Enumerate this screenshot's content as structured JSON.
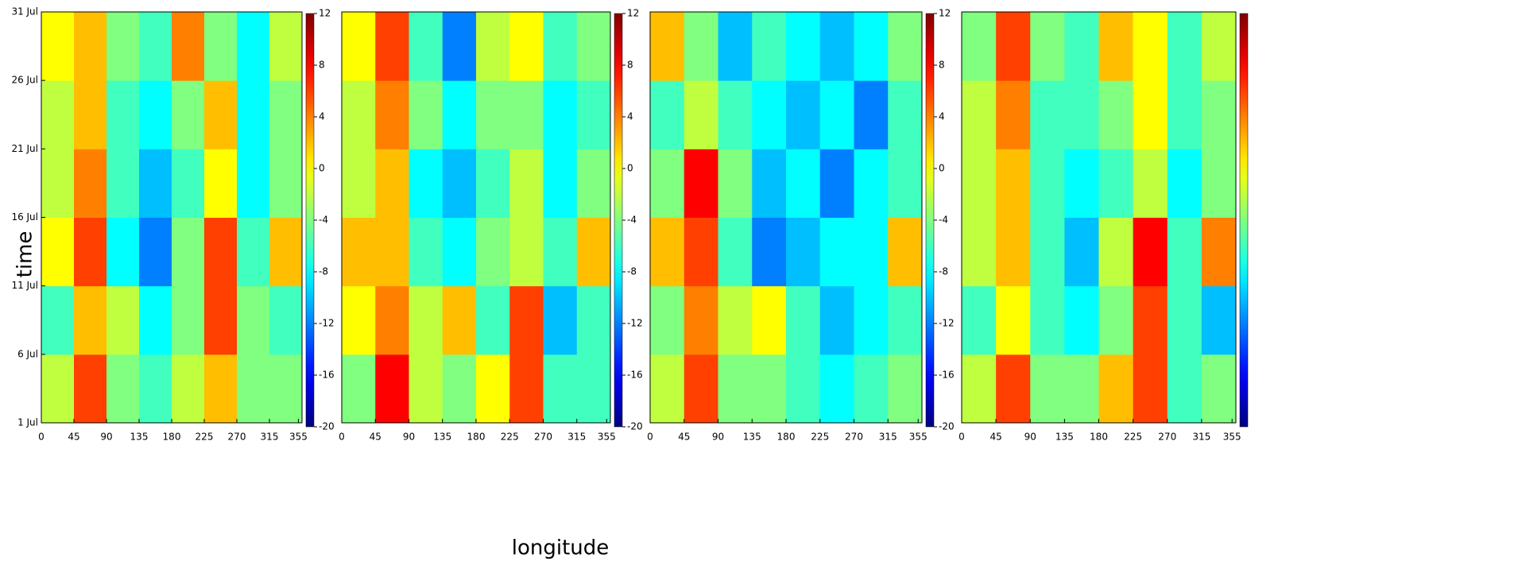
{
  "chart_data": [
    {
      "type": "heatmap",
      "ylabel": "time",
      "clim": [
        -20,
        12
      ],
      "cticks": [
        12,
        8,
        4,
        0,
        -4,
        -8,
        -12,
        -16,
        -20
      ],
      "xlim": [
        0,
        360
      ],
      "xticks": [
        0,
        45,
        90,
        135,
        180,
        225,
        270,
        315,
        355
      ],
      "ylim": [
        1,
        31
      ],
      "yticks": [
        {
          "value": 1,
          "label": "1 Jul"
        },
        {
          "value": 6,
          "label": "6 Jul"
        },
        {
          "value": 11,
          "label": "11 Jul"
        },
        {
          "value": 16,
          "label": "16 Jul"
        },
        {
          "value": 21,
          "label": "21 Jul"
        },
        {
          "value": 26,
          "label": "26 Jul"
        },
        {
          "value": 31,
          "label": "31 Jul"
        }
      ],
      "x": [
        22.5,
        67.5,
        112.5,
        157.5,
        202.5,
        247.5,
        292.5,
        337.5
      ],
      "y": [
        3.5,
        8.5,
        13.5,
        18.5,
        23.5,
        28.5
      ],
      "z": [
        [
          -2,
          6,
          -4,
          -6,
          -2,
          2,
          -4,
          -4
        ],
        [
          -6,
          2,
          -2,
          -8,
          -4,
          6,
          -4,
          -6
        ],
        [
          0,
          6,
          -8,
          -12,
          -4,
          6,
          -6,
          2
        ],
        [
          -2,
          4,
          -6,
          -10,
          -6,
          0,
          -8,
          -4
        ],
        [
          -2,
          2,
          -6,
          -8,
          -4,
          2,
          -8,
          -4
        ],
        [
          0,
          2,
          -4,
          -6,
          4,
          -4,
          -8,
          -2
        ]
      ]
    },
    {
      "type": "heatmap",
      "xlabel": "longitude",
      "clim": [
        -20,
        12
      ],
      "cticks": [
        12,
        8,
        4,
        0,
        -4,
        -8,
        -12,
        -16,
        -20
      ],
      "xlim": [
        0,
        360
      ],
      "xticks": [
        0,
        45,
        90,
        135,
        180,
        225,
        270,
        315,
        355
      ],
      "ylim": [
        1,
        31
      ],
      "x": [
        22.5,
        67.5,
        112.5,
        157.5,
        202.5,
        247.5,
        292.5,
        337.5
      ],
      "y": [
        3.5,
        8.5,
        13.5,
        18.5,
        23.5,
        28.5
      ],
      "z": [
        [
          -4,
          8,
          -2,
          -4,
          0,
          6,
          -6,
          -6
        ],
        [
          0,
          4,
          -2,
          2,
          -6,
          6,
          -10,
          -6
        ],
        [
          2,
          2,
          -6,
          -8,
          -4,
          -2,
          -6,
          2
        ],
        [
          -2,
          2,
          -8,
          -10,
          -6,
          -2,
          -8,
          -4
        ],
        [
          -2,
          4,
          -4,
          -8,
          -4,
          -4,
          -8,
          -6
        ],
        [
          0,
          6,
          -6,
          -12,
          -2,
          0,
          -6,
          -4
        ]
      ]
    },
    {
      "type": "heatmap",
      "clim": [
        -20,
        12
      ],
      "cticks": [
        12,
        8,
        4,
        0,
        -4,
        -8,
        -12,
        -16,
        -20
      ],
      "xlim": [
        0,
        360
      ],
      "xticks": [
        0,
        45,
        90,
        135,
        180,
        225,
        270,
        315,
        355
      ],
      "ylim": [
        1,
        31
      ],
      "x": [
        22.5,
        67.5,
        112.5,
        157.5,
        202.5,
        247.5,
        292.5,
        337.5
      ],
      "y": [
        3.5,
        8.5,
        13.5,
        18.5,
        23.5,
        28.5
      ],
      "z": [
        [
          -2,
          6,
          -4,
          -4,
          -6,
          -8,
          -6,
          -4
        ],
        [
          -4,
          4,
          -2,
          0,
          -6,
          -10,
          -8,
          -6
        ],
        [
          2,
          6,
          -6,
          -12,
          -10,
          -8,
          -8,
          2
        ],
        [
          -4,
          8,
          -4,
          -10,
          -8,
          -12,
          -8,
          -6
        ],
        [
          -6,
          -2,
          -6,
          -8,
          -10,
          -8,
          -12,
          -6
        ],
        [
          2,
          -4,
          -10,
          -6,
          -8,
          -10,
          -8,
          -4
        ]
      ]
    },
    {
      "type": "heatmap",
      "clim": [
        -20,
        12
      ],
      "xlim": [
        0,
        360
      ],
      "xticks": [
        0,
        45,
        90,
        135,
        180,
        225,
        270,
        315,
        355
      ],
      "ylim": [
        1,
        31
      ],
      "x": [
        22.5,
        67.5,
        112.5,
        157.5,
        202.5,
        247.5,
        292.5,
        337.5
      ],
      "y": [
        3.5,
        8.5,
        13.5,
        18.5,
        23.5,
        28.5
      ],
      "z": [
        [
          -2,
          6,
          -4,
          -4,
          2,
          6,
          -6,
          -4
        ],
        [
          -6,
          0,
          -6,
          -8,
          -4,
          6,
          -6,
          -10
        ],
        [
          -2,
          2,
          -6,
          -10,
          -2,
          8,
          -6,
          4
        ],
        [
          -2,
          2,
          -6,
          -8,
          -6,
          -2,
          -8,
          -4
        ],
        [
          -2,
          4,
          -6,
          -6,
          -4,
          0,
          -6,
          -4
        ],
        [
          -4,
          6,
          -4,
          -6,
          2,
          0,
          -6,
          -2
        ]
      ]
    }
  ]
}
